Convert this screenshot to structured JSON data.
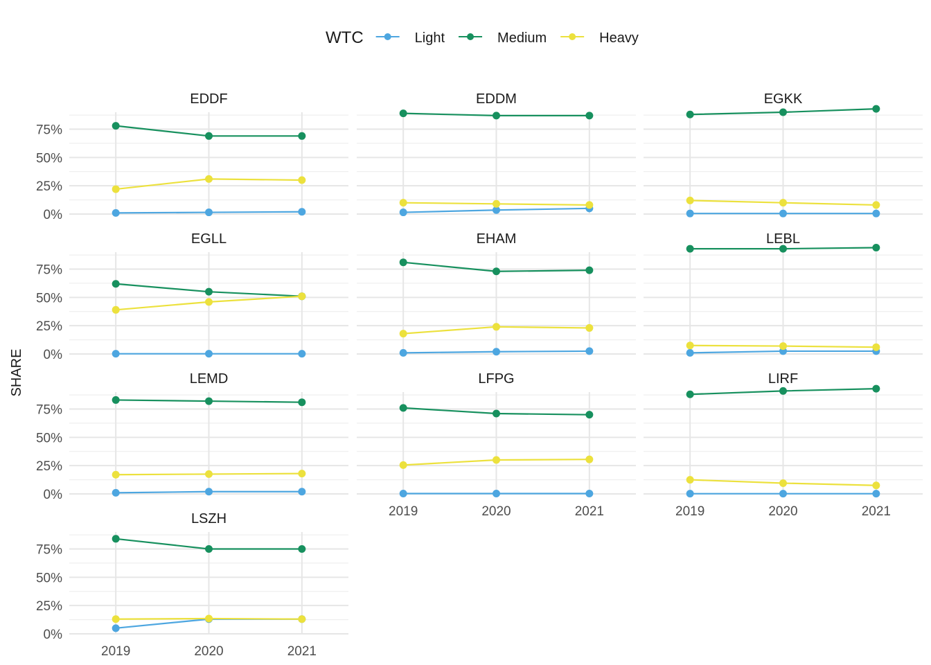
{
  "chart_data": {
    "type": "line",
    "legend": {
      "title": "WTC",
      "placement": "top",
      "entries": [
        {
          "name": "Light",
          "color": "#4da6e0"
        },
        {
          "name": "Medium",
          "color": "#17905e"
        },
        {
          "name": "Heavy",
          "color": "#ece13d"
        }
      ]
    },
    "ylabel": "SHARE",
    "xlabel": "",
    "x": [
      "2019",
      "2020",
      "2021"
    ],
    "y_ticks": [
      "0%",
      "25%",
      "50%",
      "75%"
    ],
    "ylim": [
      0,
      0.9
    ],
    "grid": true,
    "facets": [
      {
        "title": "EDDF",
        "series": [
          {
            "name": "Light",
            "values": [
              0.01,
              0.015,
              0.02
            ]
          },
          {
            "name": "Medium",
            "values": [
              0.78,
              0.69,
              0.69
            ]
          },
          {
            "name": "Heavy",
            "values": [
              0.22,
              0.31,
              0.3
            ]
          }
        ]
      },
      {
        "title": "EDDM",
        "series": [
          {
            "name": "Light",
            "values": [
              0.015,
              0.035,
              0.05
            ]
          },
          {
            "name": "Medium",
            "values": [
              0.89,
              0.87,
              0.87
            ]
          },
          {
            "name": "Heavy",
            "values": [
              0.1,
              0.09,
              0.08
            ]
          }
        ]
      },
      {
        "title": "EGKK",
        "series": [
          {
            "name": "Light",
            "values": [
              0.005,
              0.005,
              0.005
            ]
          },
          {
            "name": "Medium",
            "values": [
              0.88,
              0.9,
              0.93
            ]
          },
          {
            "name": "Heavy",
            "values": [
              0.12,
              0.1,
              0.08
            ]
          }
        ]
      },
      {
        "title": "EGLL",
        "series": [
          {
            "name": "Light",
            "values": [
              0.002,
              0.002,
              0.002
            ]
          },
          {
            "name": "Medium",
            "values": [
              0.62,
              0.55,
              0.51
            ]
          },
          {
            "name": "Heavy",
            "values": [
              0.39,
              0.46,
              0.51
            ]
          }
        ]
      },
      {
        "title": "EHAM",
        "series": [
          {
            "name": "Light",
            "values": [
              0.01,
              0.02,
              0.025
            ]
          },
          {
            "name": "Medium",
            "values": [
              0.81,
              0.73,
              0.74
            ]
          },
          {
            "name": "Heavy",
            "values": [
              0.18,
              0.24,
              0.23
            ]
          }
        ]
      },
      {
        "title": "LEBL",
        "series": [
          {
            "name": "Light",
            "values": [
              0.01,
              0.025,
              0.025
            ]
          },
          {
            "name": "Medium",
            "values": [
              0.93,
              0.93,
              0.94
            ]
          },
          {
            "name": "Heavy",
            "values": [
              0.075,
              0.07,
              0.06
            ]
          }
        ]
      },
      {
        "title": "LEMD",
        "series": [
          {
            "name": "Light",
            "values": [
              0.01,
              0.02,
              0.02
            ]
          },
          {
            "name": "Medium",
            "values": [
              0.83,
              0.82,
              0.81
            ]
          },
          {
            "name": "Heavy",
            "values": [
              0.17,
              0.175,
              0.18
            ]
          }
        ]
      },
      {
        "title": "LFPG",
        "series": [
          {
            "name": "Light",
            "values": [
              0.003,
              0.003,
              0.003
            ]
          },
          {
            "name": "Medium",
            "values": [
              0.76,
              0.71,
              0.7
            ]
          },
          {
            "name": "Heavy",
            "values": [
              0.255,
              0.3,
              0.305
            ]
          }
        ]
      },
      {
        "title": "LIRF",
        "series": [
          {
            "name": "Light",
            "values": [
              0.002,
              0.002,
              0.002
            ]
          },
          {
            "name": "Medium",
            "values": [
              0.88,
              0.91,
              0.93
            ]
          },
          {
            "name": "Heavy",
            "values": [
              0.125,
              0.095,
              0.075
            ]
          }
        ]
      },
      {
        "title": "LSZH",
        "series": [
          {
            "name": "Light",
            "values": [
              0.05,
              0.13,
              0.13
            ]
          },
          {
            "name": "Medium",
            "values": [
              0.84,
              0.75,
              0.75
            ]
          },
          {
            "name": "Heavy",
            "values": [
              0.13,
              0.135,
              0.13
            ]
          }
        ]
      }
    ]
  }
}
